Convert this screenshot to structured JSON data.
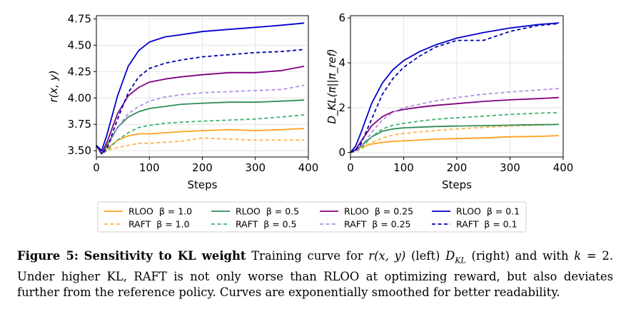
{
  "chart_data": [
    {
      "type": "line",
      "xlabel": "Steps",
      "ylabel": "r(x, y)",
      "xlim": [
        0,
        400
      ],
      "ylim": [
        3.44,
        4.78
      ],
      "xticks": [
        0,
        100,
        200,
        300,
        400
      ],
      "yticks": [
        3.5,
        3.75,
        4.0,
        4.25,
        4.5,
        4.75
      ],
      "xtick_labels": [
        "0",
        "100",
        "200",
        "300",
        "400"
      ],
      "ytick_labels": [
        "3.50",
        "3.75",
        "4.00",
        "4.25",
        "4.50",
        "4.75"
      ],
      "grid": true,
      "series": [
        {
          "name": "RLOO β = 1.0",
          "color": "#ff9f1c",
          "dash": "solid",
          "x": [
            0,
            10,
            20,
            40,
            60,
            80,
            100,
            130,
            160,
            200,
            250,
            300,
            350,
            392
          ],
          "y": [
            3.55,
            3.47,
            3.52,
            3.6,
            3.64,
            3.66,
            3.66,
            3.67,
            3.68,
            3.69,
            3.7,
            3.69,
            3.7,
            3.71
          ]
        },
        {
          "name": "RAFT β = 1.0",
          "color": "#ffb347",
          "dash": "dashed",
          "x": [
            0,
            10,
            20,
            40,
            60,
            80,
            100,
            130,
            160,
            200,
            250,
            300,
            350,
            392
          ],
          "y": [
            3.55,
            3.47,
            3.5,
            3.53,
            3.55,
            3.57,
            3.57,
            3.58,
            3.59,
            3.62,
            3.61,
            3.6,
            3.6,
            3.6
          ]
        },
        {
          "name": "RLOO β = 0.5",
          "color": "#2e8b57",
          "dash": "solid",
          "x": [
            0,
            10,
            20,
            40,
            60,
            80,
            100,
            130,
            160,
            200,
            250,
            300,
            350,
            392
          ],
          "y": [
            3.55,
            3.47,
            3.55,
            3.72,
            3.82,
            3.87,
            3.9,
            3.92,
            3.94,
            3.95,
            3.96,
            3.96,
            3.97,
            3.98
          ]
        },
        {
          "name": "RAFT β = 0.5",
          "color": "#3cb371",
          "dash": "dashed",
          "x": [
            0,
            10,
            20,
            40,
            60,
            80,
            100,
            130,
            160,
            200,
            250,
            300,
            350,
            392
          ],
          "y": [
            3.55,
            3.47,
            3.5,
            3.6,
            3.67,
            3.72,
            3.74,
            3.76,
            3.77,
            3.78,
            3.79,
            3.8,
            3.82,
            3.84
          ]
        },
        {
          "name": "RLOO β = 0.25",
          "color": "#800080",
          "dash": "solid",
          "x": [
            0,
            10,
            20,
            40,
            60,
            80,
            100,
            130,
            160,
            200,
            250,
            300,
            350,
            392
          ],
          "y": [
            3.55,
            3.47,
            3.58,
            3.85,
            4.02,
            4.1,
            4.15,
            4.18,
            4.2,
            4.22,
            4.24,
            4.24,
            4.26,
            4.3
          ]
        },
        {
          "name": "RAFT β = 0.25",
          "color": "#b48ee6",
          "dash": "dashed",
          "x": [
            0,
            10,
            20,
            40,
            60,
            80,
            100,
            130,
            160,
            200,
            250,
            300,
            350,
            392
          ],
          "y": [
            3.55,
            3.47,
            3.52,
            3.72,
            3.85,
            3.92,
            3.97,
            4.01,
            4.03,
            4.05,
            4.06,
            4.07,
            4.08,
            4.12
          ]
        },
        {
          "name": "RLOO β = 0.1",
          "color": "#0000d0",
          "dash": "solid",
          "x": [
            0,
            10,
            20,
            40,
            60,
            80,
            100,
            130,
            160,
            200,
            250,
            300,
            350,
            392
          ],
          "y": [
            3.55,
            3.5,
            3.65,
            4.02,
            4.3,
            4.45,
            4.53,
            4.58,
            4.6,
            4.63,
            4.65,
            4.67,
            4.69,
            4.71
          ]
        },
        {
          "name": "RAFT β = 0.1",
          "color": "#0000b0",
          "dash": "dashed",
          "x": [
            0,
            10,
            20,
            40,
            60,
            80,
            100,
            130,
            160,
            200,
            250,
            300,
            350,
            392
          ],
          "y": [
            3.55,
            3.47,
            3.52,
            3.8,
            4.05,
            4.2,
            4.28,
            4.33,
            4.36,
            4.39,
            4.41,
            4.43,
            4.44,
            4.46
          ]
        }
      ]
    },
    {
      "type": "line",
      "xlabel": "Steps",
      "ylabel": "D_KL(π||π_ref)",
      "xlim": [
        0,
        400
      ],
      "ylim": [
        -0.2,
        6.1
      ],
      "xticks": [
        0,
        100,
        200,
        300,
        400
      ],
      "yticks": [
        0,
        2,
        4,
        6
      ],
      "xtick_labels": [
        "0",
        "100",
        "200",
        "300",
        "400"
      ],
      "ytick_labels": [
        "0",
        "2",
        "4",
        "6"
      ],
      "grid": true,
      "series": [
        {
          "name": "RLOO β = 1.0",
          "color": "#ff9f1c",
          "dash": "solid",
          "x": [
            0,
            10,
            20,
            40,
            60,
            80,
            100,
            130,
            160,
            200,
            250,
            300,
            350,
            392
          ],
          "y": [
            0,
            0.1,
            0.25,
            0.38,
            0.45,
            0.5,
            0.52,
            0.56,
            0.6,
            0.62,
            0.65,
            0.7,
            0.72,
            0.75
          ]
        },
        {
          "name": "RAFT β = 1.0",
          "color": "#ffb347",
          "dash": "dashed",
          "x": [
            0,
            10,
            20,
            40,
            60,
            80,
            100,
            130,
            160,
            200,
            250,
            300,
            350,
            392
          ],
          "y": [
            0,
            0.05,
            0.15,
            0.45,
            0.65,
            0.78,
            0.85,
            0.92,
            0.98,
            1.05,
            1.12,
            1.18,
            1.22,
            1.25
          ]
        },
        {
          "name": "RLOO β = 0.5",
          "color": "#2e8b57",
          "dash": "solid",
          "x": [
            0,
            10,
            20,
            40,
            60,
            80,
            100,
            130,
            160,
            200,
            250,
            300,
            350,
            392
          ],
          "y": [
            0,
            0.1,
            0.3,
            0.7,
            0.95,
            1.05,
            1.1,
            1.13,
            1.16,
            1.18,
            1.2,
            1.22,
            1.24,
            1.25
          ]
        },
        {
          "name": "RAFT β = 0.5",
          "color": "#3cb371",
          "dash": "dashed",
          "x": [
            0,
            10,
            20,
            40,
            60,
            80,
            100,
            130,
            160,
            200,
            250,
            300,
            350,
            392
          ],
          "y": [
            0,
            0.05,
            0.2,
            0.7,
            1.05,
            1.22,
            1.3,
            1.4,
            1.48,
            1.55,
            1.62,
            1.7,
            1.75,
            1.78
          ]
        },
        {
          "name": "RLOO β = 0.25",
          "color": "#800080",
          "dash": "solid",
          "x": [
            0,
            10,
            20,
            40,
            60,
            80,
            100,
            130,
            160,
            200,
            250,
            300,
            350,
            392
          ],
          "y": [
            0,
            0.15,
            0.5,
            1.2,
            1.6,
            1.82,
            1.92,
            2.02,
            2.1,
            2.18,
            2.28,
            2.35,
            2.4,
            2.45
          ]
        },
        {
          "name": "RAFT β = 0.25",
          "color": "#b48ee6",
          "dash": "dashed",
          "x": [
            0,
            10,
            20,
            40,
            60,
            80,
            100,
            130,
            160,
            200,
            250,
            300,
            350,
            392
          ],
          "y": [
            0,
            0.05,
            0.25,
            0.9,
            1.45,
            1.8,
            2.0,
            2.15,
            2.3,
            2.45,
            2.6,
            2.7,
            2.78,
            2.85
          ]
        },
        {
          "name": "RLOO β = 0.1",
          "color": "#0000d0",
          "dash": "solid",
          "x": [
            0,
            10,
            20,
            40,
            60,
            80,
            100,
            130,
            160,
            200,
            250,
            300,
            350,
            392
          ],
          "y": [
            0,
            0.3,
            0.9,
            2.2,
            3.1,
            3.7,
            4.1,
            4.5,
            4.8,
            5.1,
            5.35,
            5.55,
            5.7,
            5.78
          ]
        },
        {
          "name": "RAFT β = 0.1",
          "color": "#0000b0",
          "dash": "dashed",
          "x": [
            0,
            10,
            20,
            40,
            60,
            80,
            100,
            130,
            160,
            200,
            250,
            300,
            350,
            392
          ],
          "y": [
            0,
            0.1,
            0.4,
            1.5,
            2.6,
            3.3,
            3.8,
            4.3,
            4.7,
            5.0,
            5.0,
            5.4,
            5.65,
            5.75
          ]
        }
      ]
    }
  ],
  "legend": {
    "placement": "bottom-center",
    "entries": [
      {
        "label": "RLOO  β = 1.0",
        "color": "#ff9f1c",
        "dash": "solid"
      },
      {
        "label": "RAFT  β = 1.0",
        "color": "#ffb347",
        "dash": "dashed"
      },
      {
        "label": "RLOO  β = 0.5",
        "color": "#2e8b57",
        "dash": "solid"
      },
      {
        "label": "RAFT  β = 0.5",
        "color": "#3cb371",
        "dash": "dashed"
      },
      {
        "label": "RLOO  β = 0.25",
        "color": "#800080",
        "dash": "solid"
      },
      {
        "label": "RAFT  β = 0.25",
        "color": "#b48ee6",
        "dash": "dashed"
      },
      {
        "label": "RLOO  β = 0.1",
        "color": "#0000d0",
        "dash": "solid"
      },
      {
        "label": "RAFT  β = 0.1",
        "color": "#0000b0",
        "dash": "dashed"
      }
    ]
  },
  "caption": {
    "label": "Figure 5:",
    "title": "Sensitivity to KL weight",
    "text_1": " Training curve for ",
    "math_r": "r(x, y)",
    "text_2": " (left) ",
    "math_dkl": "D",
    "math_dkl_sub": "KL",
    "text_3": " (right) and with ",
    "math_k": "k",
    "text_4": " = 2. Under higher KL, RAFT is not only worse than RLOO at optimizing reward, but also deviates further from the reference policy. Curves are exponentially smoothed for better readability."
  }
}
